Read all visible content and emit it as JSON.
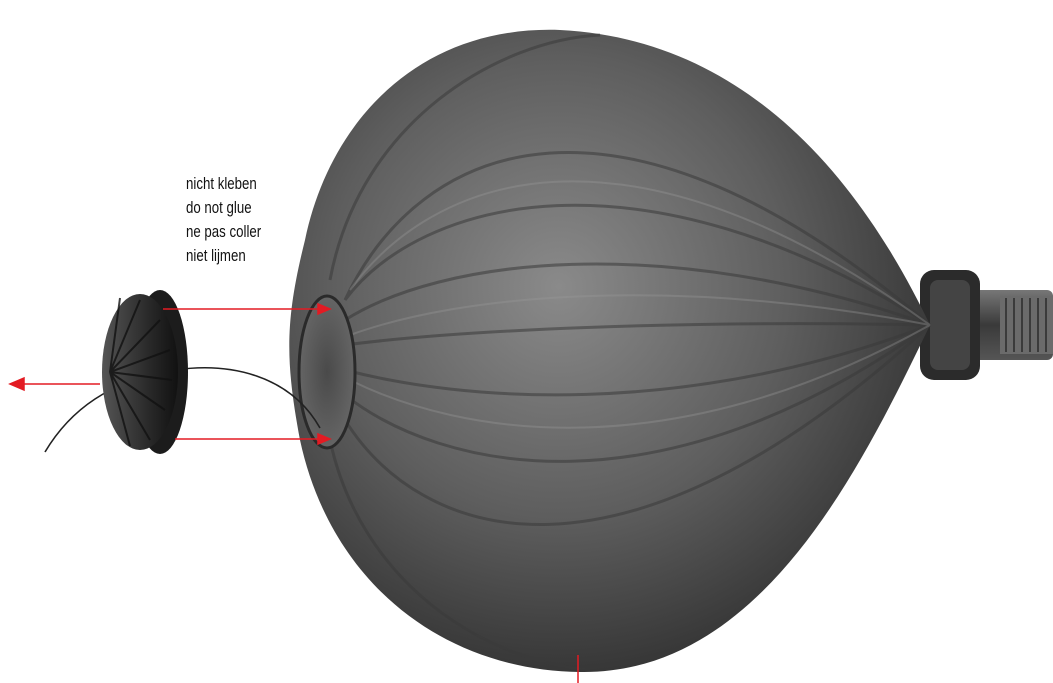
{
  "notes": [
    "nicht kleben",
    "do not glue",
    "ne pas coller",
    "niet lijmen"
  ],
  "colors": {
    "arrow": "#e31b23",
    "balloon": "#5e5e5e",
    "balloon_shadow": "#2f2f2f",
    "balloon_highlight": "#8a8a8a",
    "cap": "#2a2a2a",
    "background": "#ffffff"
  },
  "objects": [
    "balloon-mould",
    "end-cap",
    "tether-cord",
    "connector-fitting"
  ]
}
